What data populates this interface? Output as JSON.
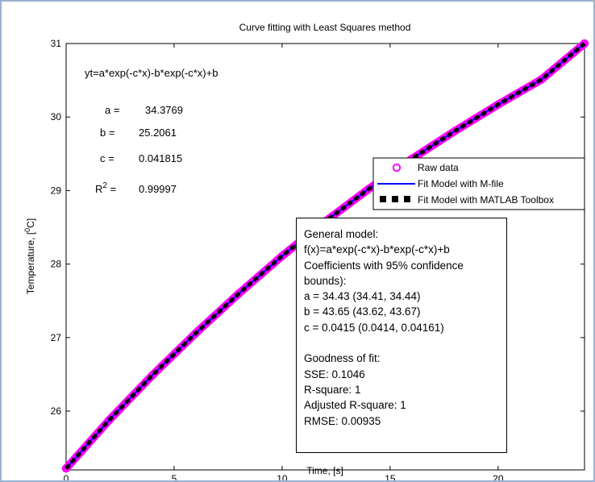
{
  "chart_data": {
    "type": "line",
    "title": "Curve fitting with Least Squares method",
    "xlabel": "Time, [s]",
    "ylabel": {
      "pre": "Temperature, [",
      "sup": "0",
      "post": "C]"
    },
    "xlim": [
      0,
      24
    ],
    "ylim": [
      25.2,
      31
    ],
    "xticks": [
      "0",
      "5",
      "10",
      "15",
      "20"
    ],
    "yticks": [
      "26",
      "27",
      "28",
      "29",
      "30",
      "31"
    ],
    "grid": false,
    "legend_position": "right",
    "series": [
      {
        "name": "Raw data",
        "style": "markers",
        "color": "#ff00ff",
        "x": [
          0,
          2,
          4,
          6,
          8,
          10,
          12,
          14,
          16,
          18,
          20,
          22,
          24
        ],
        "y": [
          25.22,
          25.88,
          26.49,
          27.06,
          27.6,
          28.11,
          28.58,
          29.02,
          29.43,
          29.81,
          30.17,
          30.51,
          31.0
        ]
      },
      {
        "name": "Fit Model with M-file",
        "style": "line",
        "color": "#0000ff",
        "x": [
          0,
          2,
          4,
          6,
          8,
          10,
          12,
          14,
          16,
          18,
          20,
          22,
          24
        ],
        "y": [
          25.22,
          25.88,
          26.49,
          27.06,
          27.6,
          28.11,
          28.58,
          29.02,
          29.43,
          29.81,
          30.17,
          30.51,
          31.0
        ]
      },
      {
        "name": "Fit Model with MATLAB Toolbox",
        "style": "dashed",
        "color": "#000000",
        "x": [
          0,
          2,
          4,
          6,
          8,
          10,
          12,
          14,
          16,
          18,
          20,
          22,
          24
        ],
        "y": [
          25.22,
          25.88,
          26.49,
          27.06,
          27.6,
          28.11,
          28.58,
          29.02,
          29.43,
          29.81,
          30.17,
          30.51,
          31.0
        ]
      }
    ],
    "annotations": {
      "equation": "yt=a*exp(-c*x)-b*exp(-c*x)+b",
      "a_label": "a =",
      "a_value": "34.3769",
      "b_label": "b =",
      "b_value": "25.2061",
      "c_label": "c =",
      "c_value": "0.041815",
      "r2_base": "R",
      "r2_sup": "2",
      "r2_eq": " =",
      "r2_value": "0.99997"
    },
    "info_box": [
      "General model:",
      "f(x)=a*exp(-c*x)-b*exp(-c*x)+b",
      "Coefficients with 95% confidence",
      "bounds):",
      "a = 34.43 (34.41, 34.44)",
      "b = 43.65 (43.62, 43.67)",
      "c = 0.0415 (0.0414, 0.04161)",
      "",
      "Goodness of fit:",
      "SSE: 0.1046",
      "R-square: 1",
      "Adjusted R-square: 1",
      "RMSE: 0.00935"
    ]
  }
}
